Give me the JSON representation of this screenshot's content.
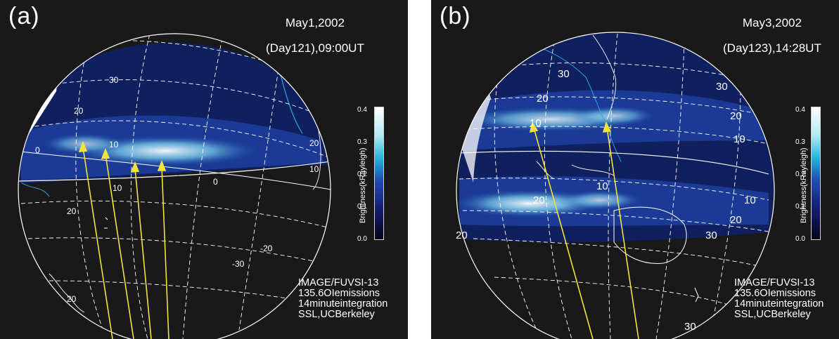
{
  "panels": [
    {
      "id": "a",
      "label": "(a)",
      "date": "May1,2002",
      "day_time": "(Day121),09:00UT",
      "colorbar": {
        "title": "Brightness(kRayleigh)",
        "ticks": [
          "0.4",
          "0.3",
          "0.2",
          "0.1",
          "0.0"
        ]
      },
      "credits": [
        "IMAGE/FUVSI-13",
        "135.6OIemissions",
        "14minuteintegration",
        "SSL,UCBerkeley"
      ],
      "lat_labels": [
        "30",
        "20",
        "10",
        "0",
        "0",
        "-20",
        "-30",
        "10",
        "20",
        "20",
        "10",
        "20"
      ]
    },
    {
      "id": "b",
      "label": "(b)",
      "date": "May3,2002",
      "day_time": "(Day123),14:28UT",
      "colorbar": {
        "title": "Brightness(kRayleigh)",
        "ticks": [
          "0.4",
          "0.3",
          "0.2",
          "0.1",
          "0.0"
        ]
      },
      "credits": [
        "IMAGE/FUVSI-13",
        "135.6OIemissions",
        "14minuteintegration",
        "SSL,UCBerkeley"
      ],
      "lat_labels": [
        "30",
        "20",
        "10",
        "10",
        "20",
        "30",
        "20",
        "10",
        "10",
        "20",
        "30",
        "30",
        "20"
      ]
    }
  ],
  "colors": {
    "background": "#191919",
    "arc_blue": "#2aa8e0",
    "arc_white": "#ffffff",
    "arrow": "#f2e23a",
    "grid": "#ffffff"
  }
}
